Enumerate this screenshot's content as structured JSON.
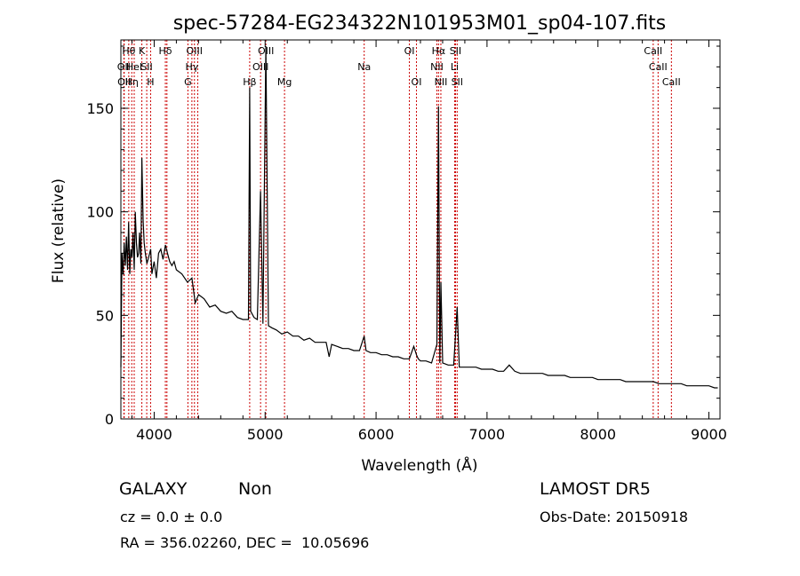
{
  "chart_data": {
    "type": "line",
    "title": "spec-57284-EG234322N101953M01_sp04-107.fits",
    "xlabel": "Wavelength (Å)",
    "ylabel": "Flux (relative)",
    "xlim": [
      3700,
      9100
    ],
    "ylim": [
      0,
      183
    ],
    "xticks": [
      4000,
      5000,
      6000,
      7000,
      8000,
      9000
    ],
    "yticks": [
      0,
      50,
      100,
      150
    ],
    "grid": false,
    "series": [
      {
        "x": [
          3700,
          3710,
          3720,
          3730,
          3740,
          3750,
          3760,
          3770,
          3780,
          3790,
          3800,
          3810,
          3820,
          3830,
          3840,
          3850,
          3860,
          3868,
          3880,
          3889,
          3900,
          3910,
          3920,
          3935,
          3950,
          3968,
          3980,
          4000,
          4020,
          4040,
          4060,
          4080,
          4101,
          4120,
          4140,
          4160,
          4180,
          4200,
          4250,
          4300,
          4340,
          4370,
          4400,
          4450,
          4500,
          4550,
          4600,
          4650,
          4700,
          4750,
          4800,
          4850,
          4861,
          4870,
          4900,
          4930,
          4959,
          4980,
          5007,
          5030,
          5060,
          5100,
          5150,
          5200,
          5250,
          5300,
          5350,
          5400,
          5450,
          5500,
          5550,
          5577,
          5600,
          5650,
          5700,
          5750,
          5800,
          5850,
          5893,
          5910,
          5950,
          6000,
          6050,
          6100,
          6150,
          6200,
          6250,
          6300,
          6340,
          6364,
          6380,
          6400,
          6450,
          6500,
          6548,
          6563,
          6575,
          6584,
          6600,
          6650,
          6700,
          6716,
          6731,
          6750,
          6800,
          6850,
          6900,
          6950,
          7000,
          7050,
          7100,
          7150,
          7200,
          7250,
          7300,
          7350,
          7400,
          7450,
          7500,
          7550,
          7600,
          7650,
          7700,
          7750,
          7800,
          7850,
          7900,
          7950,
          8000,
          8050,
          8100,
          8150,
          8200,
          8250,
          8300,
          8350,
          8400,
          8450,
          8500,
          8550,
          8600,
          8650,
          8700,
          8750,
          8800,
          8850,
          8900,
          8950,
          9000,
          9050,
          9080
        ],
        "y": [
          25,
          80,
          70,
          85,
          74,
          88,
          72,
          95,
          70,
          82,
          78,
          90,
          72,
          100,
          85,
          78,
          80,
          90,
          75,
          126,
          96,
          85,
          80,
          75,
          78,
          82,
          70,
          76,
          68,
          80,
          82,
          77,
          84,
          80,
          76,
          74,
          76,
          72,
          70,
          66,
          68,
          56,
          60,
          58,
          54,
          55,
          52,
          51,
          52,
          49,
          48,
          48,
          160,
          52,
          49,
          48,
          110,
          46,
          180,
          45,
          44,
          43,
          41,
          42,
          40,
          40,
          38,
          39,
          37,
          37,
          37,
          30,
          36,
          35,
          34,
          34,
          33,
          33,
          40,
          33,
          32,
          32,
          31,
          31,
          30,
          30,
          29,
          29,
          35,
          31,
          29,
          28,
          28,
          27,
          36,
          151,
          27,
          66,
          27,
          26,
          26,
          40,
          54,
          25,
          25,
          25,
          25,
          24,
          24,
          24,
          23,
          23,
          26,
          23,
          22,
          22,
          22,
          22,
          22,
          21,
          21,
          21,
          21,
          20,
          20,
          20,
          20,
          20,
          19,
          19,
          19,
          19,
          19,
          18,
          18,
          18,
          18,
          18,
          18,
          17,
          17,
          17,
          17,
          17,
          16,
          16,
          16,
          16,
          16,
          15,
          15
        ]
      }
    ],
    "line_color": "#000000",
    "lines": [
      {
        "wl": 3727,
        "label": "OII",
        "row": 2
      },
      {
        "wl": 3730,
        "label": "OII",
        "row": 3
      },
      {
        "wl": 3771,
        "label": "Hθ",
        "row": 1
      },
      {
        "wl": 3798,
        "label": "Hη",
        "row": 3
      },
      {
        "wl": 3820,
        "label": "HeI",
        "row": 2
      },
      {
        "wl": 3889,
        "label": "K",
        "row": 1
      },
      {
        "wl": 3933,
        "label": "SII",
        "row": 2
      },
      {
        "wl": 3968,
        "label": "H",
        "row": 3
      },
      {
        "wl": 4101,
        "label": "Hδ",
        "row": 1
      },
      {
        "wl": 4115,
        "label": "",
        "row": 0
      },
      {
        "wl": 4304,
        "label": "G",
        "row": 3
      },
      {
        "wl": 4340,
        "label": "Hγ",
        "row": 2
      },
      {
        "wl": 4363,
        "label": "OIII",
        "row": 1
      },
      {
        "wl": 4393,
        "label": "",
        "row": 0
      },
      {
        "wl": 4861,
        "label": "Hβ",
        "row": 3
      },
      {
        "wl": 4959,
        "label": "OIII",
        "row": 2
      },
      {
        "wl": 5007,
        "label": "OIII",
        "row": 1
      },
      {
        "wl": 5175,
        "label": "Mg",
        "row": 3
      },
      {
        "wl": 5893,
        "label": "Na",
        "row": 2
      },
      {
        "wl": 6300,
        "label": "OI",
        "row": 1
      },
      {
        "wl": 6364,
        "label": "OI",
        "row": 3
      },
      {
        "wl": 6548,
        "label": "NII",
        "row": 2
      },
      {
        "wl": 6563,
        "label": "Hα",
        "row": 1
      },
      {
        "wl": 6584,
        "label": "NII",
        "row": 3
      },
      {
        "wl": 6708,
        "label": "Li",
        "row": 2
      },
      {
        "wl": 6716,
        "label": "SII",
        "row": 1
      },
      {
        "wl": 6731,
        "label": "SII",
        "row": 3
      },
      {
        "wl": 8498,
        "label": "CaII",
        "row": 1
      },
      {
        "wl": 8542,
        "label": "CaII",
        "row": 2
      },
      {
        "wl": 8662,
        "label": "CaII",
        "row": 3
      }
    ],
    "line_color_marker": "#cc0000"
  },
  "info": {
    "class": "GALAXY",
    "subclass": "Non",
    "survey": "LAMOST DR5",
    "cz": "cz = 0.0 ± 0.0",
    "obsdate": "Obs-Date: 20150918",
    "radec": "RA = 356.02260, DEC =  10.05696"
  }
}
